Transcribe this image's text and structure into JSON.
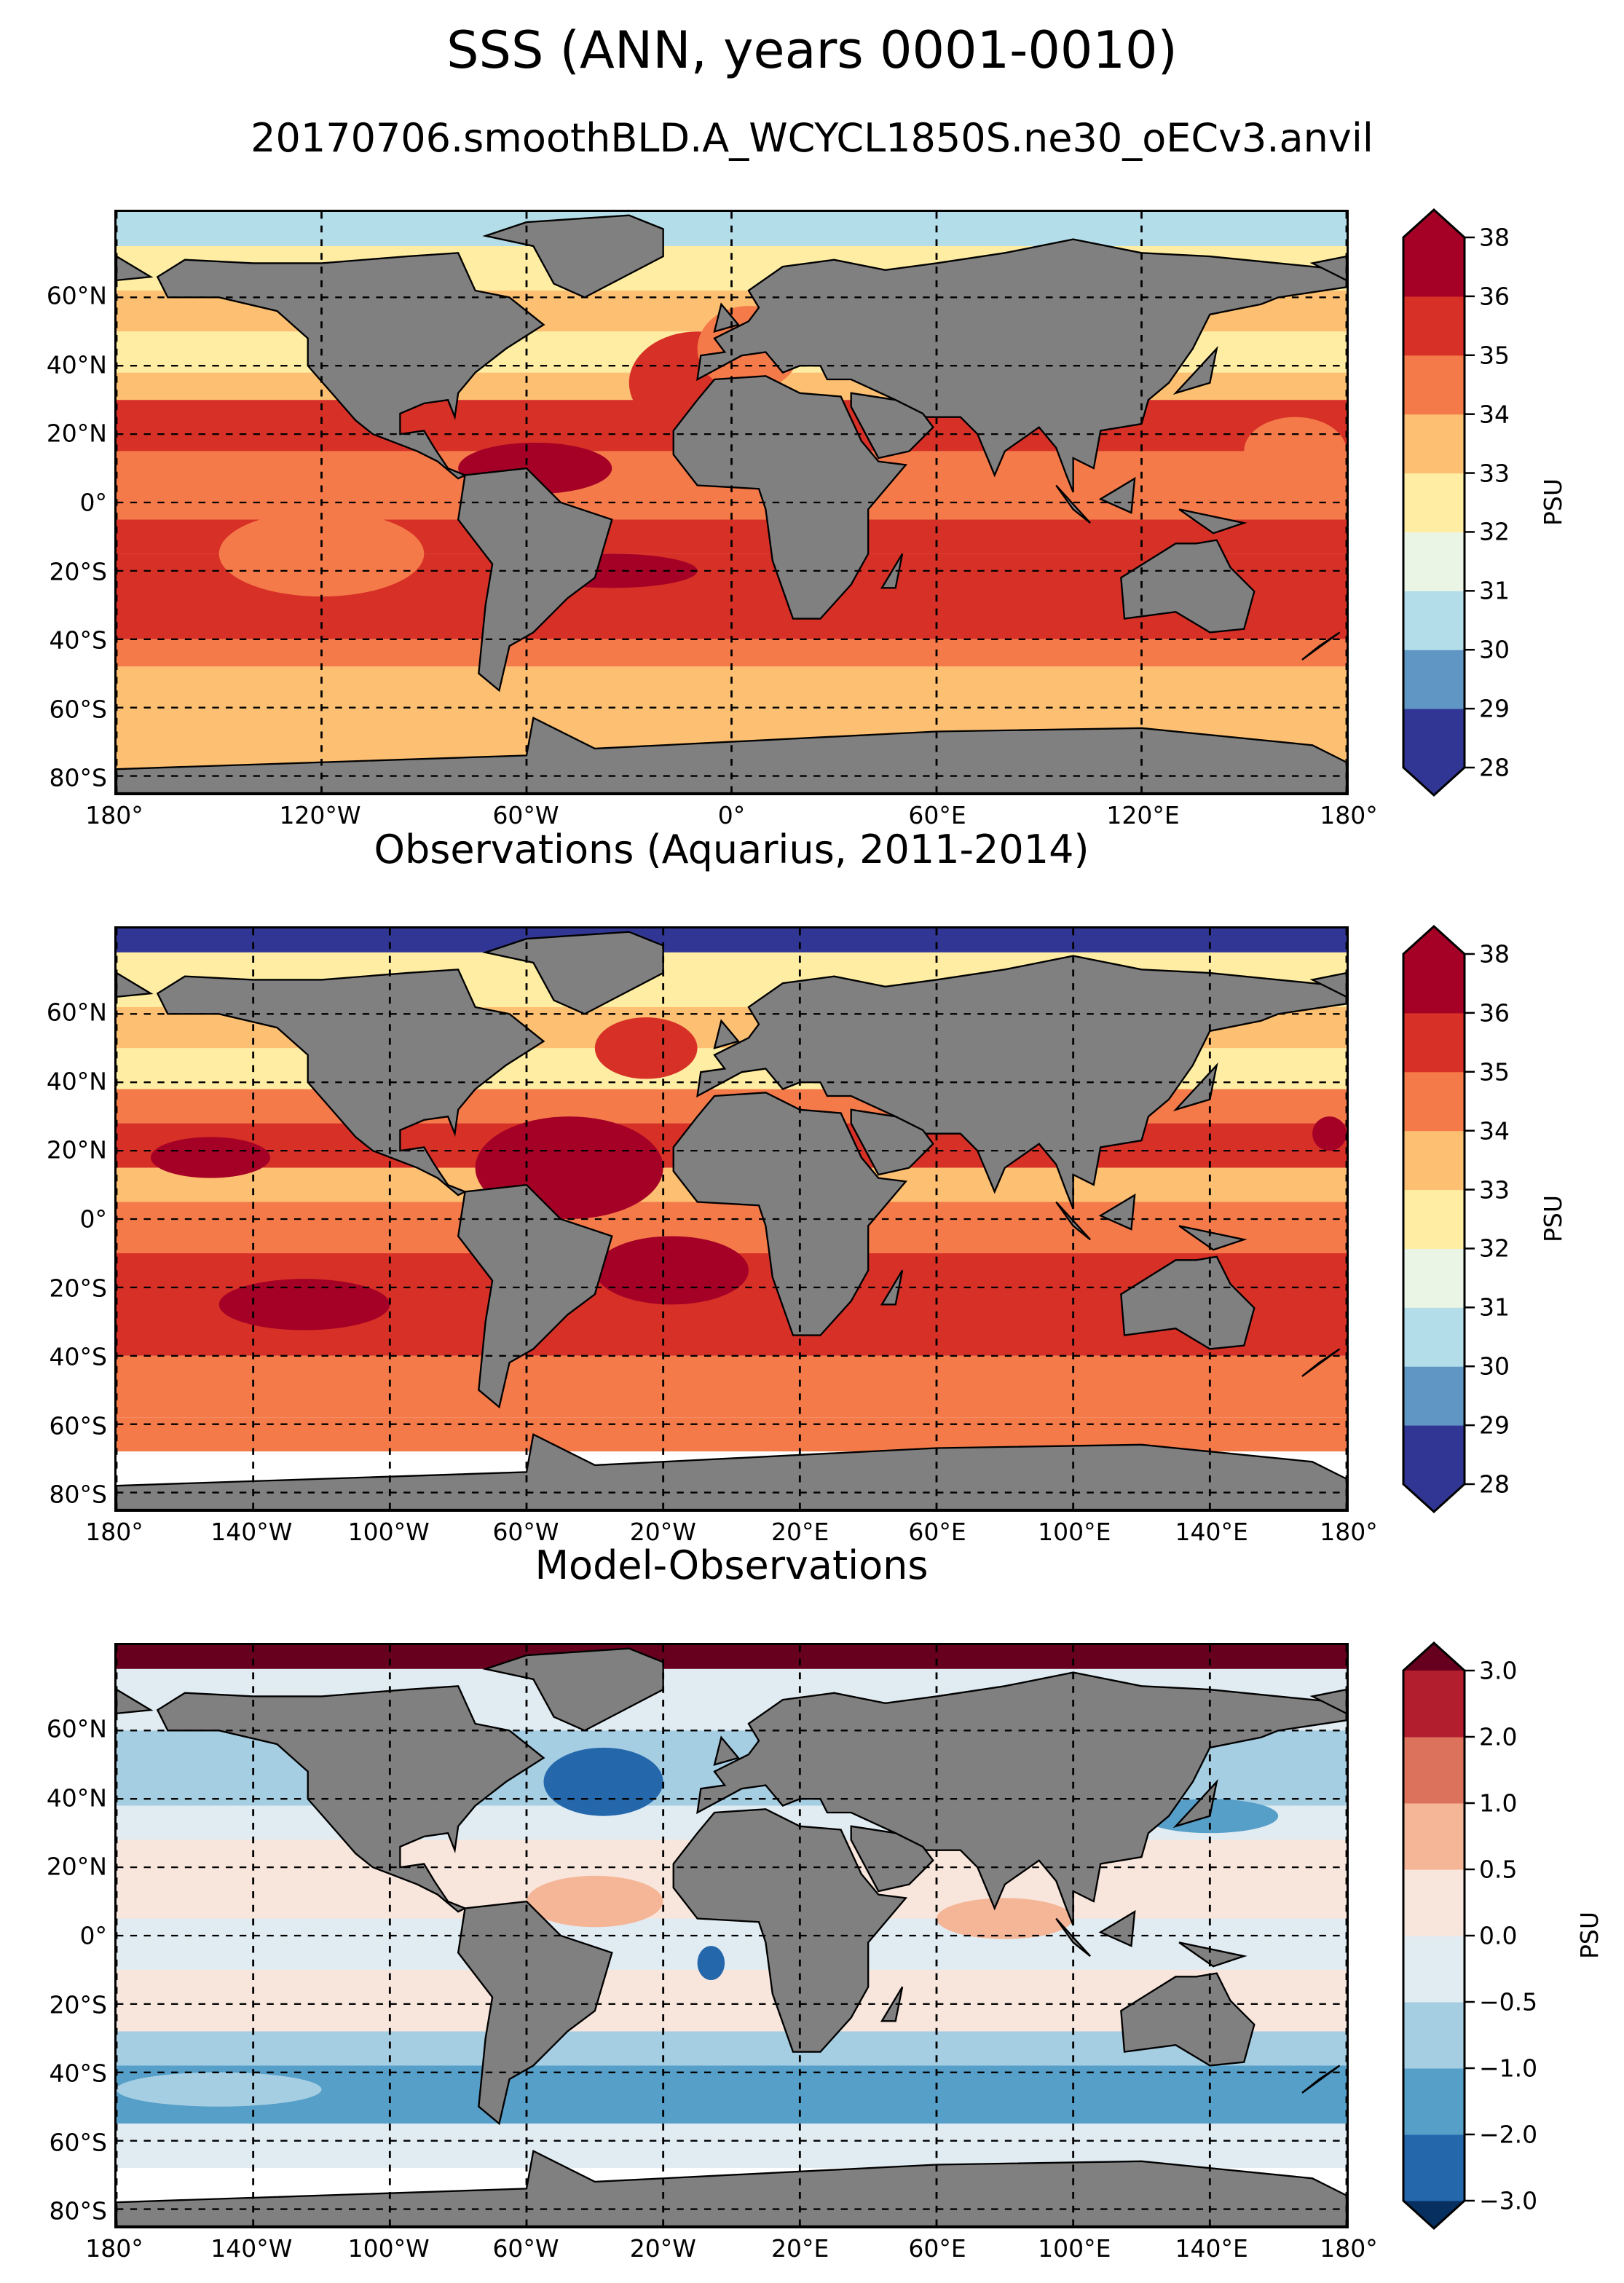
{
  "title": "SSS (ANN, years 0001-0010)",
  "subtitle": "20170706.smoothBLD.A_WCYCL1850S.ne30_oECv3.anvil",
  "chart_data": [
    {
      "type": "heatmap",
      "title": "",
      "subplot": "model",
      "xticks": [
        -180,
        -120,
        -60,
        0,
        60,
        120,
        180
      ],
      "xtick_labels": [
        "180°",
        "120°W",
        "60°W",
        "0°",
        "60°E",
        "120°E",
        "180°"
      ],
      "yticks": [
        60,
        40,
        20,
        0,
        -20,
        -40,
        -60,
        -80
      ],
      "ytick_labels": [
        "60°N",
        "40°N",
        "20°N",
        "0°",
        "20°S",
        "40°S",
        "60°S",
        "80°S"
      ],
      "xlim": [
        -180,
        180
      ],
      "ylim": [
        -85,
        85
      ],
      "colorbar": {
        "label": "PSU",
        "levels": [
          28,
          29,
          30,
          31,
          32,
          33,
          34,
          35,
          36,
          38
        ],
        "tick_labels": [
          "28",
          "29",
          "30",
          "31",
          "32",
          "33",
          "34",
          "35",
          "36",
          "38"
        ],
        "colors": [
          "#313695",
          "#6096c4",
          "#b3dde9",
          "#ebf5e5",
          "#feeda2",
          "#fdbf71",
          "#f57a49",
          "#d73027",
          "#a50026"
        ],
        "under": "#313695",
        "over": "#a50026"
      },
      "bands": [
        [
          85,
          75,
          "#b3dde9"
        ],
        [
          75,
          62,
          "#feeda2"
        ],
        [
          62,
          50,
          "#fdbf71"
        ],
        [
          50,
          38,
          "#feeda2"
        ],
        [
          38,
          30,
          "#fdbf71"
        ],
        [
          30,
          15,
          "#d73027"
        ],
        [
          15,
          5,
          "#f57a49"
        ],
        [
          5,
          -5,
          "#f57a49"
        ],
        [
          -5,
          -15,
          "#d73027"
        ],
        [
          -15,
          -40,
          "#d73027"
        ],
        [
          -40,
          -48,
          "#f57a49"
        ],
        [
          -48,
          -85,
          "#fdbf71"
        ]
      ],
      "patches": [
        [
          -80,
          10,
          45,
          15,
          "#a50026"
        ],
        [
          -60,
          -20,
          50,
          10,
          "#a50026"
        ],
        [
          -150,
          -15,
          60,
          25,
          "#f57a49"
        ],
        [
          150,
          15,
          30,
          20,
          "#f57a49"
        ],
        [
          -30,
          35,
          40,
          30,
          "#d73027"
        ],
        [
          -10,
          45,
          30,
          25,
          "#f57a49"
        ]
      ]
    },
    {
      "type": "heatmap",
      "title": "Observations (Aquarius, 2011-2014)",
      "subplot": "obs",
      "xticks": [
        -180,
        -140,
        -100,
        -60,
        -20,
        20,
        60,
        100,
        140,
        180
      ],
      "xtick_labels": [
        "180°",
        "140°W",
        "100°W",
        "60°W",
        "20°W",
        "20°E",
        "60°E",
        "100°E",
        "140°E",
        "180°"
      ],
      "yticks": [
        60,
        40,
        20,
        0,
        -20,
        -40,
        -60,
        -80
      ],
      "ytick_labels": [
        "60°N",
        "40°N",
        "20°N",
        "0°",
        "20°S",
        "40°S",
        "60°S",
        "80°S"
      ],
      "xlim": [
        -180,
        180
      ],
      "ylim": [
        -85,
        85
      ],
      "colorbar": {
        "label": "PSU",
        "levels": [
          28,
          29,
          30,
          31,
          32,
          33,
          34,
          35,
          36,
          38
        ],
        "tick_labels": [
          "28",
          "29",
          "30",
          "31",
          "32",
          "33",
          "34",
          "35",
          "36",
          "38"
        ],
        "colors": [
          "#313695",
          "#6096c4",
          "#b3dde9",
          "#ebf5e5",
          "#feeda2",
          "#fdbf71",
          "#f57a49",
          "#d73027",
          "#a50026"
        ],
        "under": "#313695",
        "over": "#a50026"
      },
      "bands": [
        [
          85,
          78,
          "#313695"
        ],
        [
          78,
          62,
          "#feeda2"
        ],
        [
          62,
          50,
          "#fdbf71"
        ],
        [
          50,
          38,
          "#feeda2"
        ],
        [
          38,
          28,
          "#f57a49"
        ],
        [
          28,
          15,
          "#d73027"
        ],
        [
          15,
          5,
          "#fdbf71"
        ],
        [
          5,
          -10,
          "#f57a49"
        ],
        [
          -10,
          -40,
          "#d73027"
        ],
        [
          -40,
          -58,
          "#f57a49"
        ],
        [
          -58,
          -68,
          "#f57a49"
        ],
        [
          -68,
          -85,
          "#ffffff"
        ]
      ],
      "patches": [
        [
          -75,
          15,
          55,
          30,
          "#a50026"
        ],
        [
          -40,
          -15,
          45,
          20,
          "#a50026"
        ],
        [
          -150,
          -25,
          50,
          15,
          "#a50026"
        ],
        [
          -170,
          18,
          35,
          12,
          "#a50026"
        ],
        [
          -40,
          50,
          30,
          18,
          "#d73027"
        ],
        [
          170,
          25,
          10,
          10,
          "#a50026"
        ]
      ]
    },
    {
      "type": "heatmap",
      "title": "Model-Observations",
      "subplot": "diff",
      "xticks": [
        -180,
        -140,
        -100,
        -60,
        -20,
        20,
        60,
        100,
        140,
        180
      ],
      "xtick_labels": [
        "180°",
        "140°W",
        "100°W",
        "60°W",
        "20°W",
        "20°E",
        "60°E",
        "100°E",
        "140°E",
        "180°"
      ],
      "yticks": [
        60,
        40,
        20,
        0,
        -20,
        -40,
        -60,
        -80
      ],
      "ytick_labels": [
        "60°N",
        "40°N",
        "20°N",
        "0°",
        "20°S",
        "40°S",
        "60°S",
        "80°S"
      ],
      "xlim": [
        -180,
        180
      ],
      "ylim": [
        -85,
        85
      ],
      "colorbar": {
        "label": "PSU",
        "levels": [
          -3.0,
          -2.0,
          -1.0,
          -0.5,
          0.0,
          0.5,
          1.0,
          2.0,
          3.0
        ],
        "tick_labels": [
          "−3.0",
          "−2.0",
          "−1.0",
          "−0.5",
          "0.0",
          "0.5",
          "1.0",
          "2.0",
          "3.0"
        ],
        "colors": [
          "#2467ab",
          "#559fc9",
          "#a6cee3",
          "#e0ebf2",
          "#f8e5db",
          "#f5b698",
          "#dd725c",
          "#b31e2e"
        ],
        "under": "#072f5f",
        "over": "#67001f"
      },
      "bands": [
        [
          85,
          78,
          "#67001f"
        ],
        [
          78,
          60,
          "#e0ebf2"
        ],
        [
          60,
          38,
          "#a6cee3"
        ],
        [
          38,
          28,
          "#e0ebf2"
        ],
        [
          28,
          5,
          "#f8e5db"
        ],
        [
          5,
          -10,
          "#e0ebf2"
        ],
        [
          -10,
          -28,
          "#f8e5db"
        ],
        [
          -28,
          -38,
          "#a6cee3"
        ],
        [
          -38,
          -55,
          "#559fc9"
        ],
        [
          -55,
          -68,
          "#e0ebf2"
        ],
        [
          -68,
          -85,
          "#ffffff"
        ]
      ],
      "patches": [
        [
          -55,
          45,
          35,
          20,
          "#2467ab"
        ],
        [
          -60,
          10,
          40,
          15,
          "#f5b698"
        ],
        [
          -180,
          -45,
          60,
          10,
          "#a6cee3"
        ],
        [
          60,
          5,
          40,
          12,
          "#f5b698"
        ],
        [
          -10,
          -8,
          8,
          10,
          "#2467ab"
        ],
        [
          120,
          35,
          40,
          10,
          "#559fc9"
        ]
      ]
    }
  ]
}
